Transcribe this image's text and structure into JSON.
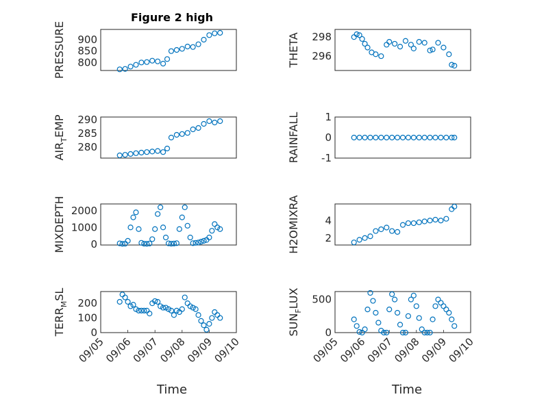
{
  "figure": {
    "title": "Figure 2 high",
    "xlabel": "Time"
  },
  "colors": {
    "marker": "#0072BD",
    "axes": "#262626",
    "grid": "#dcdcdc",
    "background": "#ffffff"
  },
  "chart_data": [
    {
      "id": "pressure",
      "type": "scatter",
      "title": "Figure 2 high",
      "ylabel": "PRESSURE",
      "ylim": [
        765,
        945
      ],
      "yticks": [
        800,
        850,
        900
      ],
      "ytick_labels": [
        "800",
        "850",
        "900"
      ],
      "xlim": [
        0,
        5
      ],
      "xticks": [],
      "xtick_labels": [],
      "x": [
        0.7,
        0.9,
        1.1,
        1.3,
        1.5,
        1.7,
        1.9,
        2.1,
        2.3,
        2.45,
        2.6,
        2.8,
        3.0,
        3.2,
        3.4,
        3.6,
        3.8,
        4.0,
        4.2,
        4.4
      ],
      "y": [
        770,
        772,
        782,
        790,
        800,
        802,
        808,
        805,
        795,
        815,
        850,
        855,
        860,
        870,
        868,
        880,
        900,
        920,
        928,
        930
      ]
    },
    {
      "id": "theta",
      "type": "scatter",
      "ylabel": "THETA",
      "ylim": [
        294.5,
        298.8
      ],
      "yticks": [
        296,
        298
      ],
      "ytick_labels": [
        "296",
        "298"
      ],
      "xlim": [
        0,
        5
      ],
      "xticks": [],
      "xtick_labels": [],
      "x": [
        0.7,
        0.8,
        0.9,
        1.0,
        1.1,
        1.2,
        1.35,
        1.5,
        1.7,
        1.9,
        2.0,
        2.2,
        2.4,
        2.6,
        2.8,
        2.9,
        3.1,
        3.3,
        3.5,
        3.6,
        3.8,
        4.0,
        4.2,
        4.3,
        4.4
      ],
      "y": [
        298.0,
        298.3,
        298.2,
        297.8,
        297.3,
        296.9,
        296.4,
        296.2,
        296.0,
        297.2,
        297.5,
        297.3,
        297.0,
        297.6,
        297.2,
        296.8,
        297.5,
        297.4,
        296.6,
        296.7,
        297.4,
        296.9,
        296.2,
        295.1,
        295.0
      ]
    },
    {
      "id": "air_temp",
      "type": "scatter",
      "ylabel": "AIR_TEMP",
      "ylabel_main": "AIR",
      "ylabel_sub": "T",
      "ylabel_tail": "EMP",
      "ylim": [
        276,
        291
      ],
      "yticks": [
        280,
        285,
        290
      ],
      "ytick_labels": [
        "280",
        "285",
        "290"
      ],
      "xlim": [
        0,
        5
      ],
      "xticks": [],
      "xtick_labels": [],
      "x": [
        0.7,
        0.9,
        1.1,
        1.3,
        1.5,
        1.7,
        1.9,
        2.1,
        2.3,
        2.45,
        2.6,
        2.8,
        3.0,
        3.2,
        3.4,
        3.6,
        3.8,
        4.0,
        4.2,
        4.4
      ],
      "y": [
        277,
        277.2,
        277.5,
        277.8,
        278,
        278.2,
        278.4,
        278.6,
        278.2,
        279.5,
        283.5,
        284.5,
        284.8,
        285.2,
        286.5,
        287,
        288.5,
        289.5,
        289,
        289.5
      ]
    },
    {
      "id": "rainfall",
      "type": "scatter",
      "ylabel": "RAINFALL",
      "ylim": [
        -1,
        1
      ],
      "yticks": [
        -1,
        0,
        1
      ],
      "ytick_labels": [
        "-1",
        "0",
        "1"
      ],
      "xlim": [
        0,
        5
      ],
      "xticks": [],
      "xtick_labels": [],
      "x": [
        0.7,
        0.9,
        1.1,
        1.3,
        1.5,
        1.7,
        1.9,
        2.1,
        2.3,
        2.5,
        2.7,
        2.9,
        3.1,
        3.3,
        3.5,
        3.7,
        3.9,
        4.1,
        4.3,
        4.4
      ],
      "y": [
        0,
        0,
        0,
        0,
        0,
        0,
        0,
        0,
        0,
        0,
        0,
        0,
        0,
        0,
        0,
        0,
        0,
        0,
        0,
        0
      ]
    },
    {
      "id": "mixdepth",
      "type": "scatter",
      "ylabel": "MIXDEPTH",
      "ylim": [
        -50,
        2400
      ],
      "yticks": [
        0,
        1000,
        2000
      ],
      "ytick_labels": [
        "0",
        "1000",
        "2000"
      ],
      "xlim": [
        0,
        5
      ],
      "xticks": [],
      "xtick_labels": [],
      "x": [
        0.7,
        0.8,
        0.9,
        1.0,
        1.1,
        1.2,
        1.3,
        1.4,
        1.5,
        1.6,
        1.7,
        1.8,
        1.9,
        2.0,
        2.1,
        2.2,
        2.3,
        2.4,
        2.5,
        2.6,
        2.7,
        2.8,
        2.9,
        3.0,
        3.1,
        3.2,
        3.3,
        3.4,
        3.5,
        3.6,
        3.7,
        3.8,
        3.9,
        4.0,
        4.1,
        4.2,
        4.3,
        4.4
      ],
      "y": [
        50,
        20,
        30,
        200,
        1000,
        1600,
        1900,
        900,
        80,
        30,
        20,
        40,
        300,
        900,
        1800,
        2200,
        1000,
        400,
        50,
        30,
        40,
        60,
        900,
        1600,
        2200,
        1100,
        400,
        60,
        80,
        100,
        150,
        200,
        250,
        400,
        800,
        1200,
        1000,
        900
      ]
    },
    {
      "id": "h2omixra",
      "type": "scatter",
      "ylabel": "H2OMIXRA",
      "ylim": [
        1.2,
        5.9
      ],
      "yticks": [
        2,
        4
      ],
      "ytick_labels": [
        "2",
        "4"
      ],
      "xlim": [
        0,
        5
      ],
      "xticks": [],
      "xtick_labels": [],
      "x": [
        0.7,
        0.9,
        1.1,
        1.3,
        1.5,
        1.7,
        1.9,
        2.1,
        2.3,
        2.5,
        2.7,
        2.9,
        3.1,
        3.3,
        3.5,
        3.7,
        3.9,
        4.1,
        4.3,
        4.4
      ],
      "y": [
        1.5,
        1.8,
        2.0,
        2.2,
        2.8,
        3.0,
        3.2,
        2.8,
        2.7,
        3.5,
        3.7,
        3.7,
        3.8,
        3.9,
        4.0,
        4.1,
        4.0,
        4.2,
        5.3,
        5.6
      ]
    },
    {
      "id": "terr_msl",
      "type": "scatter",
      "ylabel": "TERR_MSL",
      "ylabel_main": "TERR",
      "ylabel_sub": "M",
      "ylabel_tail": "SL",
      "ylim": [
        0,
        280
      ],
      "yticks": [
        0,
        100,
        200
      ],
      "ytick_labels": [
        "0",
        "100",
        "200"
      ],
      "xlim": [
        0,
        5
      ],
      "xticks": [
        0,
        1,
        2,
        3,
        4,
        5
      ],
      "xtick_labels": [
        "09/05",
        "09/06",
        "09/07",
        "09/08",
        "09/09",
        "09/10"
      ],
      "x": [
        0.7,
        0.8,
        0.9,
        1.0,
        1.1,
        1.2,
        1.3,
        1.4,
        1.5,
        1.6,
        1.7,
        1.8,
        1.9,
        2.0,
        2.1,
        2.2,
        2.3,
        2.4,
        2.5,
        2.6,
        2.7,
        2.8,
        2.9,
        3.0,
        3.1,
        3.2,
        3.3,
        3.4,
        3.5,
        3.6,
        3.7,
        3.8,
        3.9,
        4.0,
        4.1,
        4.2,
        4.3,
        4.4
      ],
      "y": [
        210,
        260,
        240,
        210,
        180,
        190,
        160,
        150,
        150,
        150,
        150,
        130,
        200,
        215,
        210,
        180,
        170,
        170,
        160,
        150,
        120,
        150,
        140,
        160,
        240,
        200,
        180,
        170,
        160,
        120,
        80,
        50,
        20,
        60,
        100,
        140,
        120,
        100
      ]
    },
    {
      "id": "sun_flux",
      "type": "scatter",
      "ylabel": "SUN_FLUX",
      "ylabel_main": "SUN",
      "ylabel_sub": "F",
      "ylabel_tail": "LUX",
      "ylim": [
        0,
        620
      ],
      "yticks": [
        0,
        500
      ],
      "ytick_labels": [
        "0",
        "500"
      ],
      "xlim": [
        0,
        5
      ],
      "xticks": [
        0,
        1,
        2,
        3,
        4,
        5
      ],
      "xtick_labels": [
        "09/05",
        "09/06",
        "09/07",
        "09/08",
        "09/09",
        "09/10"
      ],
      "x": [
        0.7,
        0.8,
        0.9,
        1.0,
        1.1,
        1.2,
        1.3,
        1.4,
        1.5,
        1.6,
        1.7,
        1.8,
        1.9,
        2.0,
        2.1,
        2.2,
        2.3,
        2.4,
        2.5,
        2.6,
        2.7,
        2.8,
        2.9,
        3.0,
        3.1,
        3.2,
        3.3,
        3.4,
        3.5,
        3.6,
        3.7,
        3.8,
        3.9,
        4.0,
        4.1,
        4.2,
        4.3,
        4.4
      ],
      "y": [
        200,
        100,
        10,
        0,
        50,
        350,
        600,
        480,
        300,
        150,
        30,
        0,
        0,
        350,
        580,
        500,
        300,
        120,
        0,
        0,
        250,
        500,
        560,
        400,
        220,
        50,
        0,
        0,
        0,
        200,
        400,
        500,
        450,
        400,
        350,
        300,
        200,
        100
      ]
    }
  ]
}
